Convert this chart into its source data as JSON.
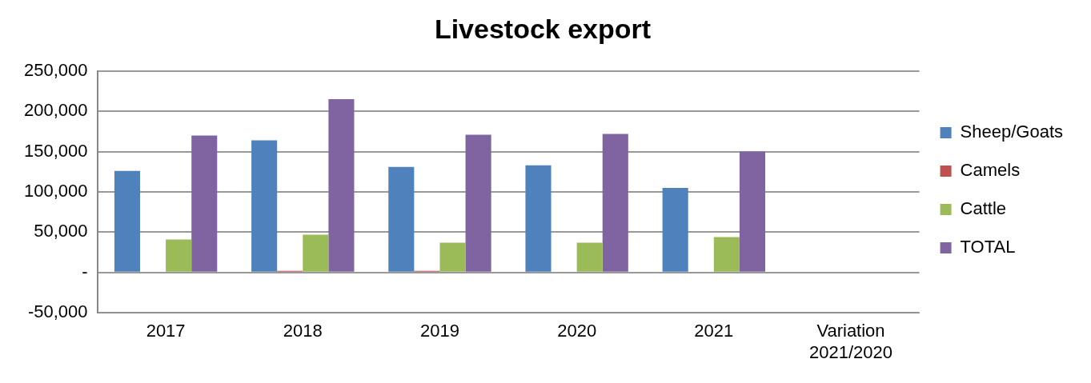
{
  "chart_data": {
    "type": "bar",
    "title": "Livestock export",
    "categories": [
      "2017",
      "2018",
      "2019",
      "2020",
      "2021",
      "Variation 2021/2020"
    ],
    "series": [
      {
        "name": "Sheep/Goats",
        "color": "#4f81bd",
        "values": [
          126000,
          164000,
          131000,
          133000,
          105000,
          -1000
        ]
      },
      {
        "name": "Camels",
        "color": "#c0504d",
        "values": [
          1000,
          2000,
          2000,
          1000,
          0,
          0
        ]
      },
      {
        "name": "Cattle",
        "color": "#9bbb59",
        "values": [
          41000,
          47000,
          37000,
          37000,
          44000,
          1000
        ]
      },
      {
        "name": "TOTAL",
        "color": "#8064a2",
        "values": [
          170000,
          215000,
          171000,
          172000,
          150000,
          -1000
        ]
      }
    ],
    "ylim": [
      -50000,
      250000
    ],
    "yticks": [
      {
        "value": -50000,
        "label": "-50,000"
      },
      {
        "value": 0,
        "label": "-"
      },
      {
        "value": 50000,
        "label": "50,000"
      },
      {
        "value": 100000,
        "label": "100,000"
      },
      {
        "value": 150000,
        "label": "150,000"
      },
      {
        "value": 200000,
        "label": "200,000"
      },
      {
        "value": 250000,
        "label": "250,000"
      }
    ],
    "grid": "y",
    "legend": "right"
  }
}
